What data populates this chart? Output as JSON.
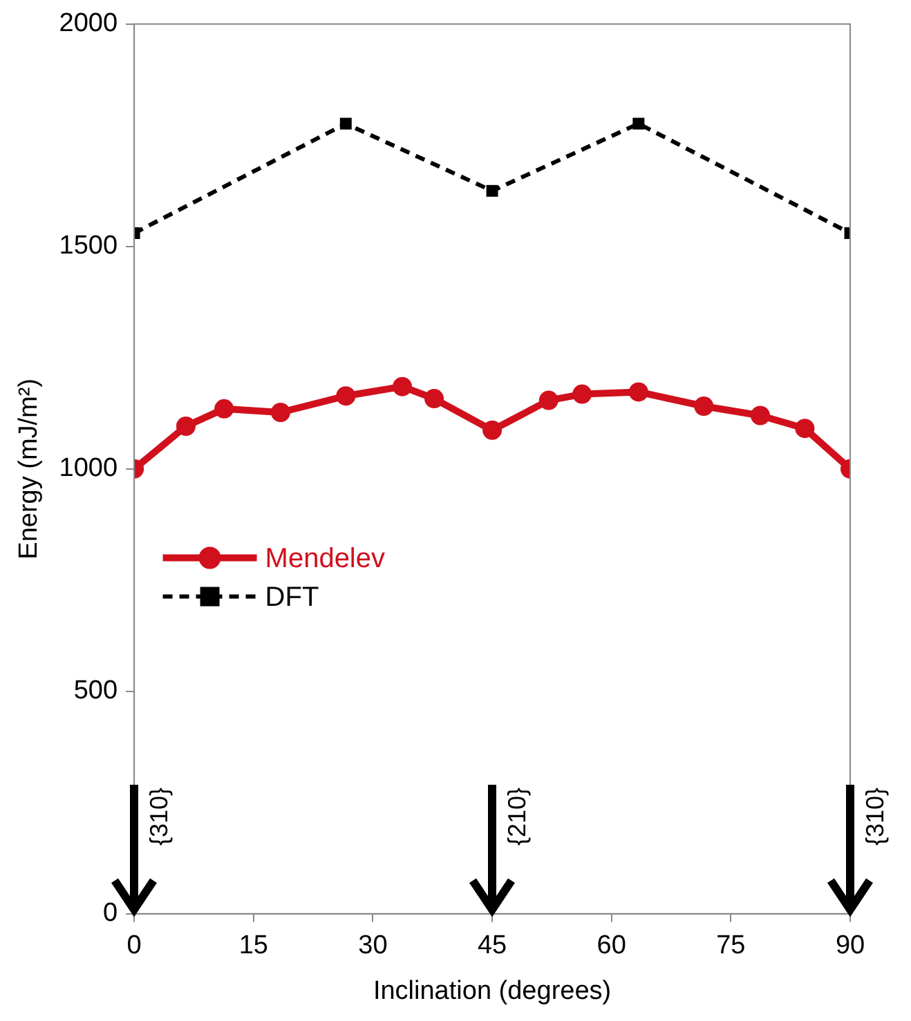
{
  "chart_data": {
    "type": "line",
    "xlabel": "Inclination (degrees)",
    "ylabel": "Energy (mJ/m²)",
    "xlim": [
      0,
      90
    ],
    "xticks": [
      0,
      15,
      30,
      45,
      60,
      75,
      90
    ],
    "ylim": [
      0,
      2000
    ],
    "yticks": [
      0,
      500,
      1000,
      1500,
      2000
    ],
    "series": [
      {
        "name": "Mendelev",
        "color": "#d0101c",
        "marker": "circle",
        "line_style": "solid",
        "x": [
          0,
          6.5,
          11.3,
          18.4,
          26.6,
          33.7,
          37.7,
          45,
          52.1,
          56.3,
          63.4,
          71.6,
          78.7,
          84.3,
          90
        ],
        "values": [
          1000,
          1096,
          1135,
          1127,
          1164,
          1185,
          1158,
          1087,
          1154,
          1168,
          1173,
          1141,
          1120,
          1091,
          1000
        ]
      },
      {
        "name": "DFT",
        "color": "#000000",
        "marker": "square",
        "line_style": "dashed",
        "x": [
          0,
          26.6,
          45,
          63.4,
          90
        ],
        "values": [
          1530,
          1776,
          1625,
          1776,
          1530
        ]
      }
    ],
    "legend": "left",
    "grid": false,
    "annotations": [
      "{310}",
      "{210}",
      "{310}"
    ]
  }
}
